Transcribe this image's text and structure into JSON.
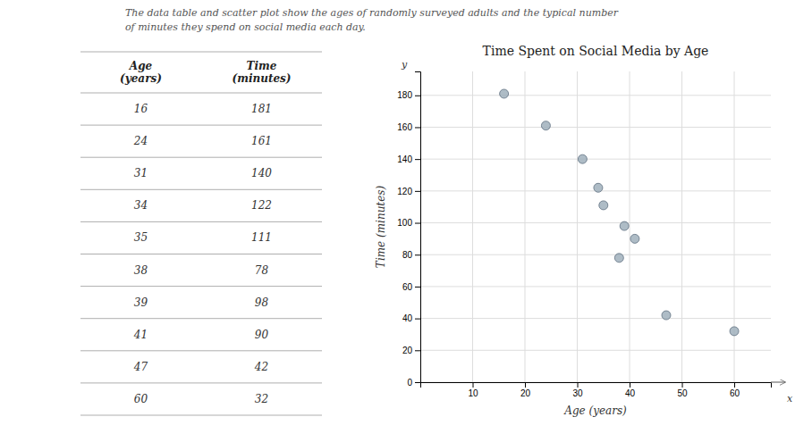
{
  "chart_data": {
    "type": "scatter",
    "title": "Time Spent on Social Media by Age",
    "subtitle": [
      "The data table and scatter plot show the ages of randomly surveyed adults and the typical number",
      "of minutes they spend on social media each day."
    ],
    "xlabel": "Age (years)",
    "ylabel": "Time (minutes)",
    "table_columns": [
      "Age\n(years)",
      "Time\n(minutes)"
    ],
    "annotations": [
      "y",
      "x"
    ],
    "x": [
      16,
      24,
      31,
      34,
      35,
      38,
      39,
      41,
      47,
      60
    ],
    "values": [
      181,
      161,
      140,
      122,
      111,
      78,
      98,
      90,
      42,
      32
    ],
    "color": "#9aabb8",
    "xlim": [
      0,
      67
    ],
    "ylim": [
      0,
      195
    ],
    "xticks": [
      10,
      20,
      30,
      40,
      50,
      60
    ],
    "yticks": [
      0,
      20,
      40,
      60,
      80,
      100,
      120,
      140,
      160,
      180
    ],
    "grid": true
  }
}
